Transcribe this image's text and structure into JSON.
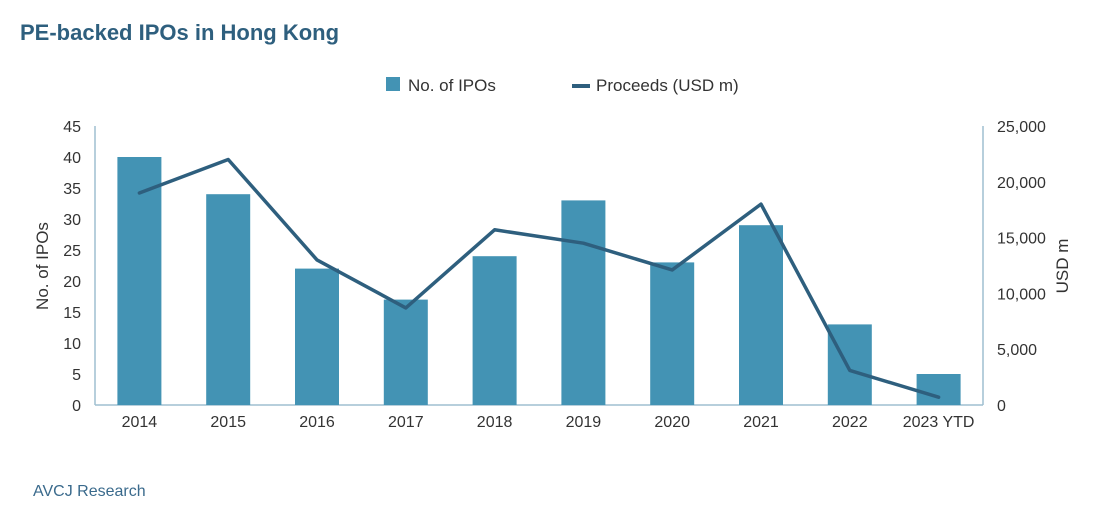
{
  "title": "PE-backed IPOs in Hong Kong",
  "source": "AVCJ Research",
  "colors": {
    "bars": "#4393b4",
    "line": "#2e5f7e",
    "axis": "#9fbfd0"
  },
  "chart_data": {
    "type": "bar",
    "categories": [
      "2014",
      "2015",
      "2016",
      "2017",
      "2018",
      "2019",
      "2020",
      "2021",
      "2022",
      "2023 YTD"
    ],
    "series": [
      {
        "name": "No. of IPOs",
        "type": "bar",
        "axis": "left",
        "values": [
          40,
          34,
          22,
          17,
          24,
          33,
          23,
          29,
          13,
          5
        ]
      },
      {
        "name": "Proceeds (USD m)",
        "type": "line",
        "axis": "right",
        "values": [
          19000,
          22000,
          13000,
          8700,
          15700,
          14500,
          12100,
          18000,
          3100,
          700
        ]
      }
    ],
    "ylabel": "No. of IPOs",
    "y2label": "USD m",
    "ylim": [
      0,
      45
    ],
    "y2lim": [
      0,
      25000
    ],
    "yticks": [
      "0",
      "5",
      "10",
      "15",
      "20",
      "25",
      "30",
      "35",
      "40",
      "45"
    ],
    "y2ticks": [
      "0",
      "5,000",
      "10,000",
      "15,000",
      "20,000",
      "25,000"
    ],
    "legend": "top-center",
    "grid": false
  }
}
